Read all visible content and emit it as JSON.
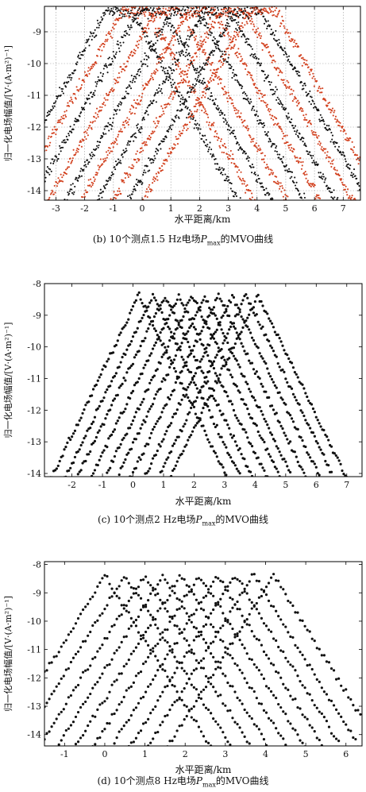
{
  "ylabel_text": "归一化电场幅值/[V·(A·m²)⁻¹]",
  "xlabel_text": "水平距离/km",
  "charts": [
    {
      "caption": {
        "pre": "(b) 10个测点1.5 Hz电场",
        "p": "P",
        "sub": "max",
        "post": "的MVO曲线"
      },
      "type": "scatter",
      "xlabel": "水平距离/km",
      "ylabel": "归一化电场幅值/[V·(A·m²)⁻¹]",
      "xlim": [
        -3.4,
        7.6
      ],
      "ylim": [
        -14.3,
        -8.2
      ],
      "xticks": [
        "-3",
        "-2",
        "-1",
        "0",
        "1",
        "2",
        "3",
        "4",
        "5",
        "6",
        "7"
      ],
      "yticks": [
        "-9",
        "-10",
        "-11",
        "-12",
        "-13",
        "-14"
      ],
      "grid": true,
      "colors": [
        "#111111",
        "#d2401e"
      ],
      "series": [
        {
          "center": -0.8,
          "color_index": 0
        },
        {
          "center": -0.25,
          "color_index": 1
        },
        {
          "center": 0.3,
          "color_index": 0
        },
        {
          "center": 0.9,
          "color_index": 1
        },
        {
          "center": 1.5,
          "color_index": 0
        },
        {
          "center": 2.05,
          "color_index": 1
        },
        {
          "center": 2.6,
          "color_index": 0
        },
        {
          "center": 3.15,
          "color_index": 1
        },
        {
          "center": 3.7,
          "color_index": 0
        },
        {
          "center": 4.2,
          "color_index": 1
        }
      ]
    },
    {
      "caption": {
        "pre": "(c) 10个测点2 Hz电场",
        "p": "P",
        "sub": "max",
        "post": "的MVO曲线"
      },
      "type": "scatter",
      "xlabel": "水平距离/km",
      "ylabel": "归一化电场幅值/[V·(A·m²)⁻¹]",
      "xlim": [
        -2.9,
        7.5
      ],
      "ylim": [
        -14.1,
        -8.0
      ],
      "xticks": [
        "-2",
        "-1",
        "0",
        "1",
        "2",
        "3",
        "4",
        "5",
        "6",
        "7"
      ],
      "yticks": [
        "-8",
        "-9",
        "-10",
        "-11",
        "-12",
        "-13",
        "-14"
      ],
      "grid": false,
      "colors": [
        "#111111"
      ],
      "series": [
        {
          "center": 0.2,
          "color_index": 0
        },
        {
          "center": 0.65,
          "color_index": 0
        },
        {
          "center": 1.05,
          "color_index": 0
        },
        {
          "center": 1.5,
          "color_index": 0
        },
        {
          "center": 1.95,
          "color_index": 0
        },
        {
          "center": 2.35,
          "color_index": 0
        },
        {
          "center": 2.8,
          "color_index": 0
        },
        {
          "center": 3.25,
          "color_index": 0
        },
        {
          "center": 3.7,
          "color_index": 0
        },
        {
          "center": 4.1,
          "color_index": 0
        }
      ]
    },
    {
      "caption": {
        "pre": "(d) 10个测点8 Hz电场",
        "p": "P",
        "sub": "max",
        "post": "的MVO曲线"
      },
      "type": "scatter",
      "xlabel": "水平距离/km",
      "ylabel": "归一化电场幅值/[V·(A·m²)⁻¹]",
      "xlim": [
        -1.5,
        6.4
      ],
      "ylim": [
        -14.4,
        -7.9
      ],
      "xticks": [
        "-1",
        "0",
        "1",
        "2",
        "3",
        "4",
        "5",
        "6"
      ],
      "yticks": [
        "-8",
        "-9",
        "-10",
        "-11",
        "-12",
        "-13",
        "-14"
      ],
      "grid": false,
      "colors": [
        "#111111"
      ],
      "series": [
        {
          "center": 0.0,
          "color_index": 0
        },
        {
          "center": 0.5,
          "color_index": 0
        },
        {
          "center": 1.0,
          "color_index": 0
        },
        {
          "center": 1.45,
          "color_index": 0
        },
        {
          "center": 1.9,
          "color_index": 0
        },
        {
          "center": 2.35,
          "color_index": 0
        },
        {
          "center": 2.8,
          "color_index": 0
        },
        {
          "center": 3.25,
          "color_index": 0
        },
        {
          "center": 3.7,
          "color_index": 0
        },
        {
          "center": 4.2,
          "color_index": 0
        }
      ]
    }
  ]
}
